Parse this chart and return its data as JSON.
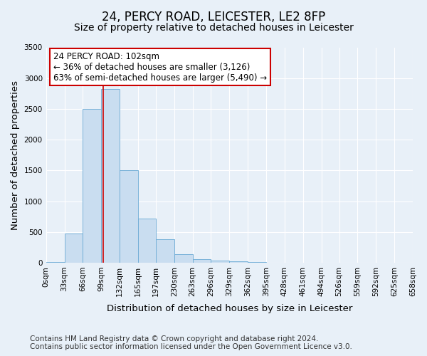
{
  "title": "24, PERCY ROAD, LEICESTER, LE2 8FP",
  "subtitle": "Size of property relative to detached houses in Leicester",
  "xlabel": "Distribution of detached houses by size in Leicester",
  "ylabel": "Number of detached properties",
  "bin_edges": [
    0,
    33,
    66,
    99,
    132,
    165,
    197,
    230,
    263,
    296,
    329,
    362,
    395,
    428,
    461,
    494,
    526,
    559,
    592,
    625,
    658
  ],
  "bar_heights": [
    15,
    475,
    2500,
    2820,
    1500,
    720,
    385,
    140,
    60,
    38,
    25,
    5,
    0,
    0,
    0,
    0,
    0,
    0,
    0,
    0
  ],
  "bar_color": "#c9ddf0",
  "bar_edge_color": "#6aaad4",
  "property_size": 102,
  "annotation_title": "24 PERCY ROAD: 102sqm",
  "annotation_line1": "← 36% of detached houses are smaller (3,126)",
  "annotation_line2": "63% of semi-detached houses are larger (5,490) →",
  "annotation_box_color": "#ffffff",
  "annotation_box_edge": "#cc0000",
  "vline_color": "#cc0000",
  "ylim": [
    0,
    3500
  ],
  "yticks": [
    0,
    500,
    1000,
    1500,
    2000,
    2500,
    3000,
    3500
  ],
  "footer_line1": "Contains HM Land Registry data © Crown copyright and database right 2024.",
  "footer_line2": "Contains public sector information licensed under the Open Government Licence v3.0.",
  "bg_color": "#e8f0f8",
  "grid_color": "#ffffff",
  "title_fontsize": 12,
  "subtitle_fontsize": 10,
  "axis_label_fontsize": 9.5,
  "tick_fontsize": 7.5,
  "annotation_fontsize": 8.5,
  "footer_fontsize": 7.5
}
